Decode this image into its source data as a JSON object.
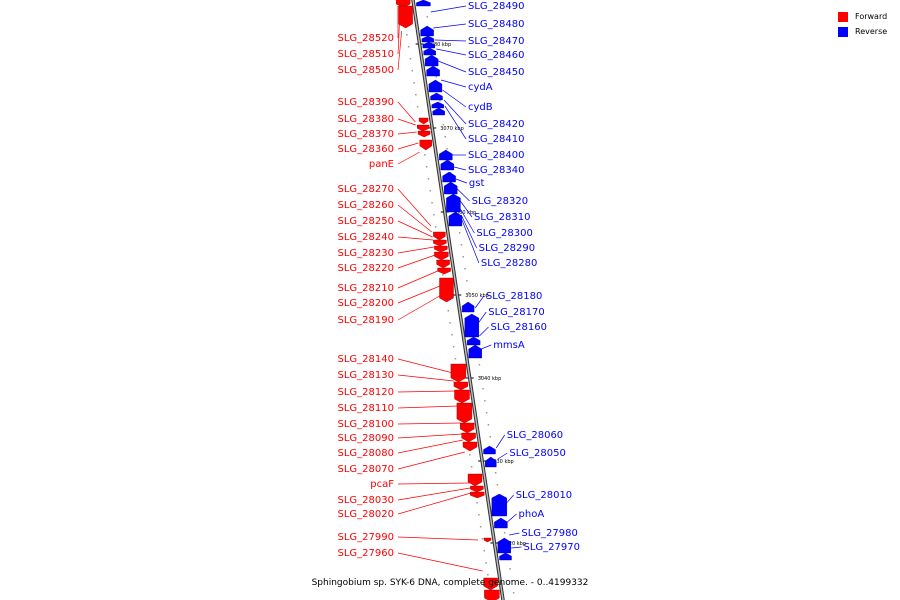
{
  "legend": {
    "forward": {
      "label": "Forward",
      "color": "#ff0000"
    },
    "reverse": {
      "label": "Reverse",
      "color": "#0000ff"
    }
  },
  "caption": "Sphingobium sp. SYK-6 DNA, complete genome. - 0..4199332",
  "ticks": [
    "3080 kbp",
    "3070 kbp",
    "3060 kbp",
    "3050 kbp",
    "3040 kbp",
    "3030 kbp",
    "3020 kbp"
  ],
  "genes_forward": [
    "SLG_28520",
    "SLG_28510",
    "SLG_28500",
    "SLG_28390",
    "SLG_28380",
    "SLG_28370",
    "SLG_28360",
    "panE",
    "SLG_28270",
    "SLG_28260",
    "SLG_28250",
    "SLG_28240",
    "SLG_28230",
    "SLG_28220",
    "SLG_28210",
    "SLG_28200",
    "SLG_28190",
    "SLG_28140",
    "SLG_28130",
    "SLG_28120",
    "SLG_28110",
    "SLG_28100",
    "SLG_28090",
    "SLG_28080",
    "SLG_28070",
    "pcaF",
    "SLG_28030",
    "SLG_28020",
    "SLG_27990",
    "SLG_27960"
  ],
  "genes_reverse": [
    "SLG_28490",
    "SLG_28480",
    "SLG_28470",
    "SLG_28460",
    "SLG_28450",
    "cydA",
    "cydB",
    "SLG_28420",
    "SLG_28410",
    "SLG_28400",
    "SLG_28340",
    "gst",
    "SLG_28320",
    "SLG_28310",
    "SLG_28300",
    "SLG_28290",
    "SLG_28280",
    "SLG_28180",
    "SLG_28170",
    "SLG_28160",
    "mmsA",
    "SLG_28060",
    "SLG_28050",
    "SLG_28010",
    "phoA",
    "SLG_27980",
    "SLG_27970"
  ]
}
